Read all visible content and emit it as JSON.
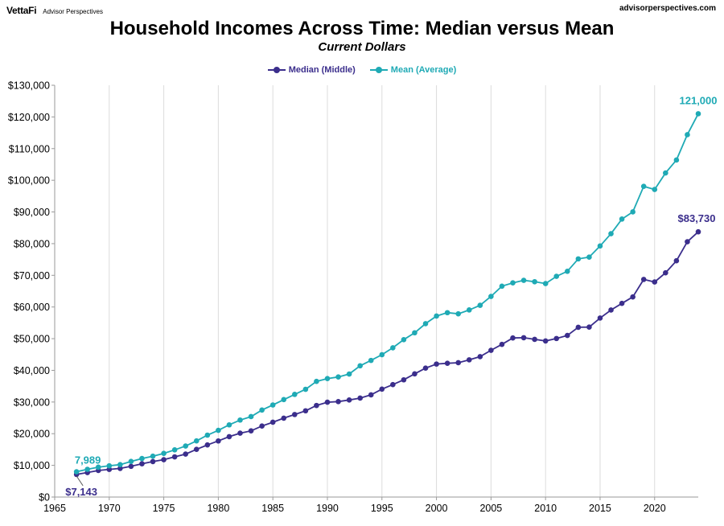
{
  "header": {
    "brand": "VettaFi",
    "brand_sub": "Advisor Perspectives",
    "site": "advisorperspectives.com"
  },
  "chart_data": {
    "type": "line",
    "title": "Household Incomes Across Time: Median versus Mean",
    "subtitle": "Current Dollars",
    "xlabel": "",
    "ylabel": "",
    "xlim": [
      1965,
      2024
    ],
    "ylim": [
      0,
      130000
    ],
    "x_ticks": [
      1965,
      1970,
      1975,
      1980,
      1985,
      1990,
      1995,
      2000,
      2005,
      2010,
      2015,
      2020
    ],
    "x_tick_labels": [
      "1965",
      "1970",
      "1975",
      "1980",
      "1985",
      "1990",
      "1995",
      "2000",
      "2005",
      "2010",
      "2015",
      "2020"
    ],
    "y_ticks": [
      0,
      10000,
      20000,
      30000,
      40000,
      50000,
      60000,
      70000,
      80000,
      90000,
      100000,
      110000,
      120000,
      130000
    ],
    "y_tick_labels": [
      "$0",
      "$10,000",
      "$20,000",
      "$30,000",
      "$40,000",
      "$50,000",
      "$60,000",
      "$70,000",
      "$80,000",
      "$90,000",
      "$100,000",
      "$110,000",
      "$120,000",
      "$130,000"
    ],
    "grid": "vertical",
    "legend": "top-center",
    "x": [
      1967,
      1968,
      1969,
      1970,
      1971,
      1972,
      1973,
      1974,
      1975,
      1976,
      1977,
      1978,
      1979,
      1980,
      1981,
      1982,
      1983,
      1984,
      1985,
      1986,
      1987,
      1988,
      1989,
      1990,
      1991,
      1992,
      1993,
      1994,
      1995,
      1996,
      1997,
      1998,
      1999,
      2000,
      2001,
      2002,
      2003,
      2004,
      2005,
      2006,
      2007,
      2008,
      2009,
      2010,
      2011,
      2012,
      2013,
      2014,
      2015,
      2016,
      2017,
      2018,
      2019,
      2020,
      2021,
      2022,
      2023,
      2024
    ],
    "series": [
      {
        "name": "Median (Middle)",
        "color": "#3b2e8c",
        "values": [
          7143,
          7740,
          8390,
          8730,
          9030,
          9700,
          10510,
          11200,
          11800,
          12690,
          13570,
          15060,
          16460,
          17710,
          19070,
          20170,
          20890,
          22420,
          23620,
          24900,
          26060,
          27230,
          28910,
          29940,
          30130,
          30640,
          31240,
          32260,
          34080,
          35490,
          37010,
          38890,
          40700,
          41990,
          42230,
          42410,
          43320,
          44330,
          46330,
          48200,
          50230,
          50300,
          49780,
          49280,
          50050,
          51020,
          53590,
          53660,
          56520,
          59040,
          61140,
          63180,
          68700,
          67900,
          70800,
          74600,
          80600,
          83730
        ],
        "start_label": "$7,143",
        "end_label": "$83,730"
      },
      {
        "name": "Mean (Average)",
        "color": "#1faab5",
        "values": [
          7989,
          8760,
          9430,
          9870,
          10240,
          11250,
          12160,
          12900,
          13780,
          14900,
          16100,
          17730,
          19550,
          21060,
          22790,
          24310,
          25400,
          27460,
          29070,
          30760,
          32410,
          34020,
          36520,
          37400,
          37920,
          38840,
          41430,
          43130,
          44940,
          47120,
          49690,
          51860,
          54740,
          57140,
          58210,
          57850,
          59070,
          60530,
          63340,
          66570,
          67610,
          68420,
          67980,
          67390,
          69680,
          71270,
          75190,
          75740,
          79260,
          83140,
          87760,
          90020,
          98090,
          97100,
          102300,
          106400,
          114400,
          121000
        ],
        "start_label": "7,989",
        "end_label": "121,000"
      }
    ]
  }
}
